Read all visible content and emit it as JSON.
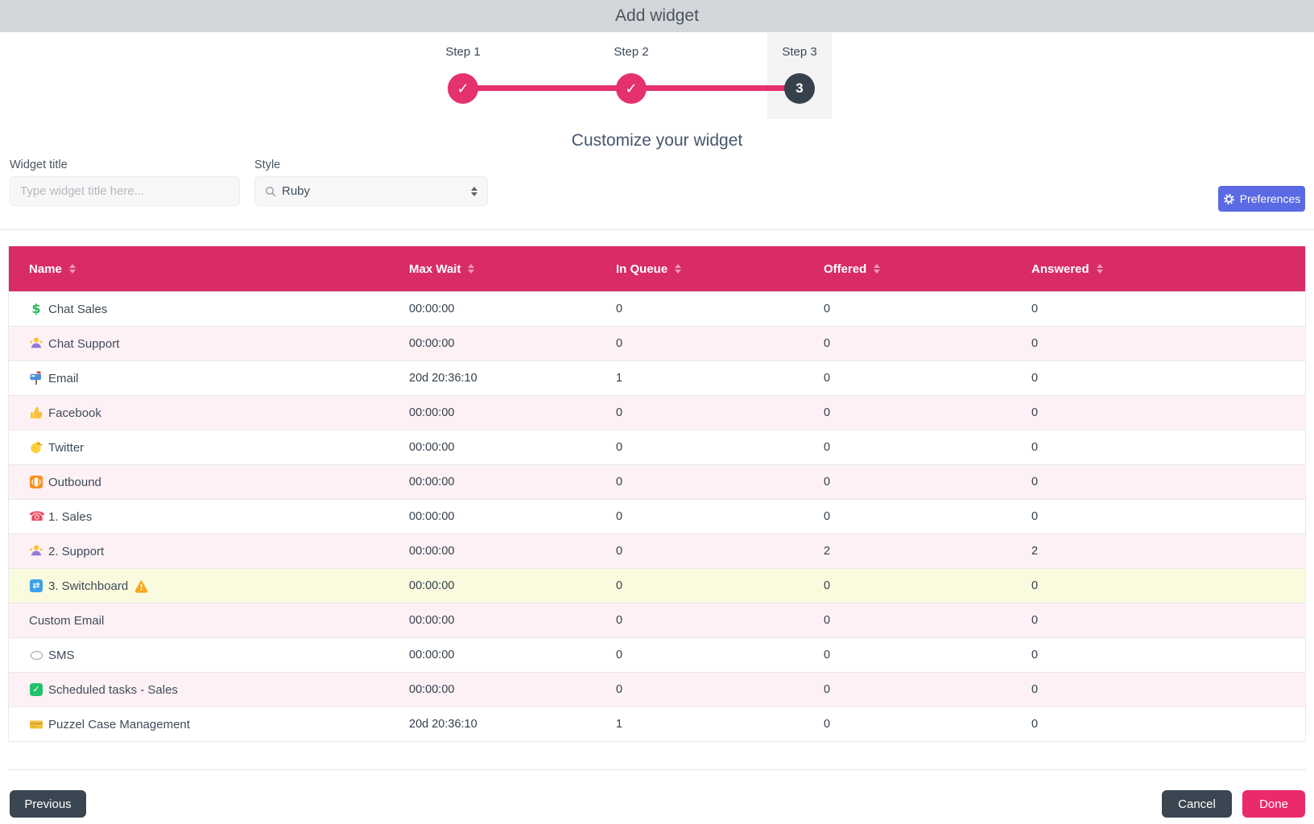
{
  "dialog": {
    "title": "Add widget"
  },
  "stepper": {
    "steps": [
      {
        "label": "Step 1",
        "status": "completed"
      },
      {
        "label": "Step 2",
        "status": "completed"
      },
      {
        "label": "Step 3",
        "status": "current",
        "number": "3"
      }
    ]
  },
  "customize": {
    "heading": "Customize your widget",
    "widget_title": {
      "label": "Widget title",
      "placeholder": "Type widget title here...",
      "value": ""
    },
    "style": {
      "label": "Style",
      "value": "Ruby",
      "icon": "search-icon"
    },
    "preferences_button": {
      "label": "Preferences",
      "icon": "gear-icon"
    }
  },
  "table": {
    "columns": [
      {
        "label": "Name",
        "sortable": true
      },
      {
        "label": "Max Wait",
        "sortable": true
      },
      {
        "label": "In Queue",
        "sortable": true
      },
      {
        "label": "Offered",
        "sortable": true
      },
      {
        "label": "Answered",
        "sortable": true
      }
    ],
    "rows": [
      {
        "icon": "dollar-icon",
        "name": "Chat Sales",
        "max_wait": "00:00:00",
        "in_queue": "0",
        "offered": "0",
        "answered": "0"
      },
      {
        "icon": "person-shrugging-icon",
        "name": "Chat Support",
        "max_wait": "00:00:00",
        "in_queue": "0",
        "offered": "0",
        "answered": "0"
      },
      {
        "icon": "mailbox-icon",
        "name": "Email",
        "max_wait": "20d 20:36:10",
        "in_queue": "1",
        "offered": "0",
        "answered": "0"
      },
      {
        "icon": "thumbs-up-icon",
        "name": "Facebook",
        "max_wait": "00:00:00",
        "in_queue": "0",
        "offered": "0",
        "answered": "0"
      },
      {
        "icon": "chick-icon",
        "name": "Twitter",
        "max_wait": "00:00:00",
        "in_queue": "0",
        "offered": "0",
        "answered": "0"
      },
      {
        "icon": "outbound-phone-icon",
        "name": "Outbound",
        "max_wait": "00:00:00",
        "in_queue": "0",
        "offered": "0",
        "answered": "0"
      },
      {
        "icon": "red-phone-icon",
        "name": "1. Sales",
        "max_wait": "00:00:00",
        "in_queue": "0",
        "offered": "0",
        "answered": "0"
      },
      {
        "icon": "person-shrugging-icon",
        "name": "2. Support",
        "max_wait": "00:00:00",
        "in_queue": "0",
        "offered": "2",
        "answered": "2"
      },
      {
        "icon": "shuffle-icon",
        "name": "3. Switchboard",
        "warning": true,
        "highlight": "yellow",
        "max_wait": "00:00:00",
        "in_queue": "0",
        "offered": "0",
        "answered": "0"
      },
      {
        "icon": null,
        "name": "Custom Email",
        "max_wait": "00:00:00",
        "in_queue": "0",
        "offered": "0",
        "answered": "0"
      },
      {
        "icon": "speech-bubble-icon",
        "name": "SMS",
        "max_wait": "00:00:00",
        "in_queue": "0",
        "offered": "0",
        "answered": "0"
      },
      {
        "icon": "green-check-icon",
        "name": "Scheduled tasks - Sales",
        "max_wait": "00:00:00",
        "in_queue": "0",
        "offered": "0",
        "answered": "0"
      },
      {
        "icon": "yellow-card-icon",
        "name": "Puzzel Case Management",
        "max_wait": "20d 20:36:10",
        "in_queue": "1",
        "offered": "0",
        "answered": "0"
      }
    ]
  },
  "footer": {
    "previous": "Previous",
    "cancel": "Cancel",
    "done": "Done"
  },
  "colors": {
    "topbar_gray": "#d4d7da",
    "accent_pink": "#e5316e",
    "table_header_pink": "#d92c66",
    "dark_navy": "#36414d",
    "preferences_blue": "#5a6ae3",
    "row_pink": "#fdf1f5",
    "row_yellow": "#fafade",
    "warning_orange": "#f6a823",
    "done_pink": "#ea2a6c"
  }
}
